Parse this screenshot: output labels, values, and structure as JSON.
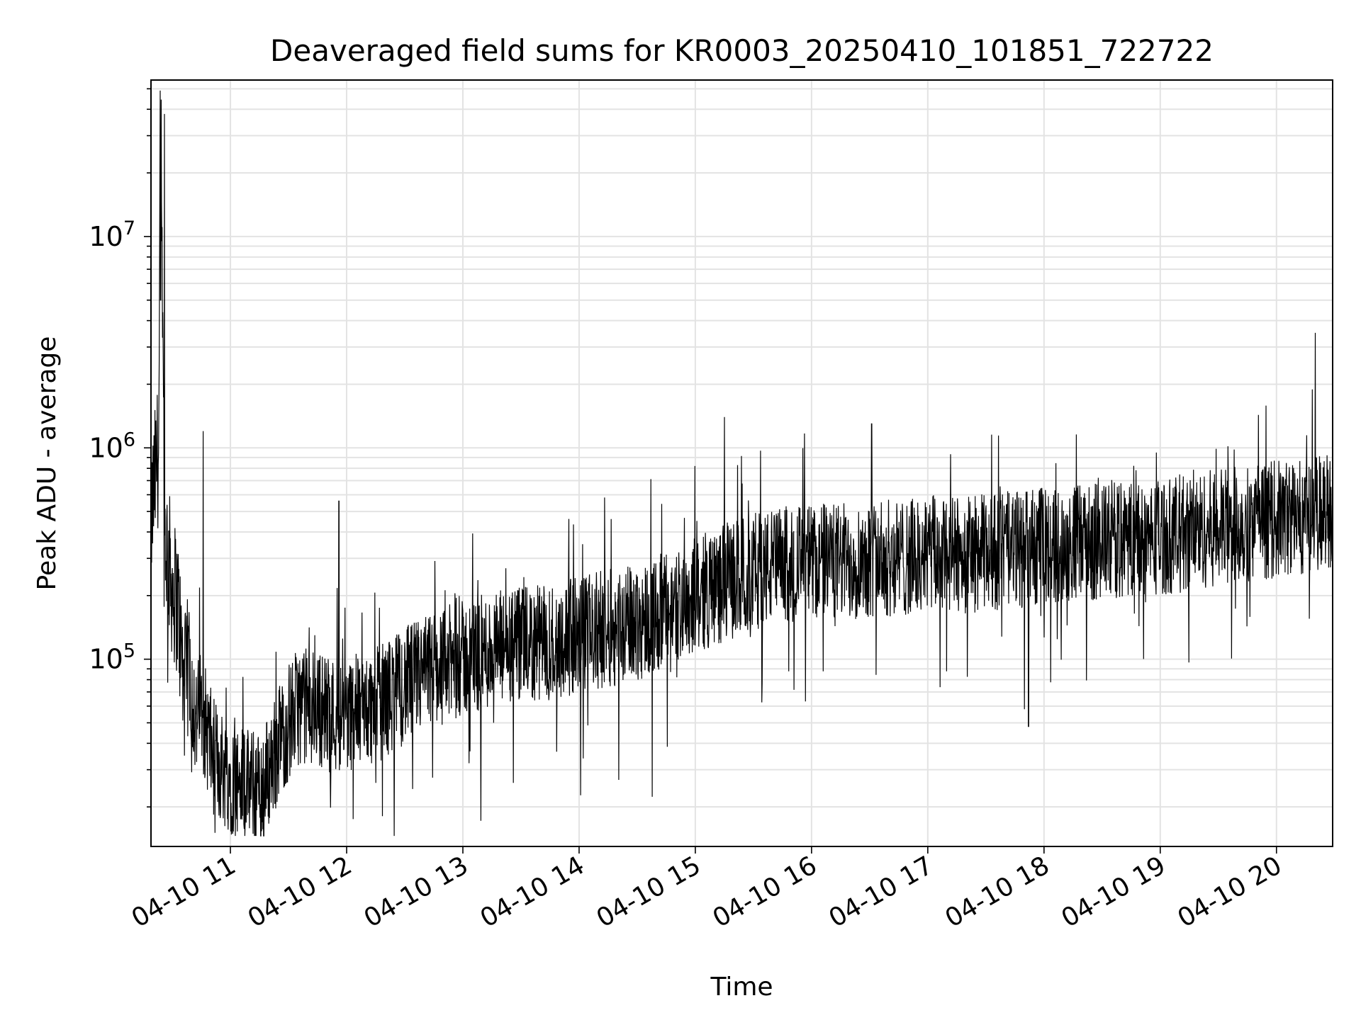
{
  "chart_data": {
    "type": "line",
    "title": "Deaveraged field sums for KR0003_20250410_101851_722722",
    "xlabel": "Time",
    "ylabel": "Peak ADU - average",
    "y_scale": "log",
    "ylim": [
      13000,
      55000000
    ],
    "xlim": [
      "04-10 10:19",
      "04-10 20:29"
    ],
    "grid": true,
    "line_color": "#000000",
    "x_ticks": [
      {
        "value": "04-10 11:00",
        "label": "04-10 11"
      },
      {
        "value": "04-10 12:00",
        "label": "04-10 12"
      },
      {
        "value": "04-10 13:00",
        "label": "04-10 13"
      },
      {
        "value": "04-10 14:00",
        "label": "04-10 14"
      },
      {
        "value": "04-10 15:00",
        "label": "04-10 15"
      },
      {
        "value": "04-10 16:00",
        "label": "04-10 16"
      },
      {
        "value": "04-10 17:00",
        "label": "04-10 17"
      },
      {
        "value": "04-10 18:00",
        "label": "04-10 18"
      },
      {
        "value": "04-10 19:00",
        "label": "04-10 19"
      },
      {
        "value": "04-10 20:00",
        "label": "04-10 20"
      }
    ],
    "y_ticks": [
      {
        "value": 100000,
        "base": "10",
        "exp": "5"
      },
      {
        "value": 1000000,
        "base": "10",
        "exp": "6"
      },
      {
        "value": 10000000,
        "base": "10",
        "exp": "7"
      }
    ],
    "series": [
      {
        "x": [
          "04-10 10:19",
          "04-10 10:21",
          "04-10 10:23",
          "04-10 10:24",
          "04-10 10:25",
          "04-10 10:26",
          "04-10 10:28",
          "04-10 10:30",
          "04-10 10:33",
          "04-10 10:36",
          "04-10 10:39",
          "04-10 10:42",
          "04-10 10:45",
          "04-10 10:48",
          "04-10 10:51",
          "04-10 10:54",
          "04-10 10:57",
          "04-10 11:00",
          "04-10 11:05",
          "04-10 11:10",
          "04-10 11:15",
          "04-10 11:20",
          "04-10 11:25",
          "04-10 11:30",
          "04-10 11:35",
          "04-10 11:40",
          "04-10 11:45",
          "04-10 11:50",
          "04-10 12:00",
          "04-10 12:15",
          "04-10 12:30",
          "04-10 12:45",
          "04-10 13:00",
          "04-10 13:15",
          "04-10 13:30",
          "04-10 13:45",
          "04-10 14:00",
          "04-10 14:15",
          "04-10 14:30",
          "04-10 14:45",
          "04-10 15:00",
          "04-10 15:15",
          "04-10 15:30",
          "04-10 15:45",
          "04-10 16:00",
          "04-10 16:15",
          "04-10 16:30",
          "04-10 16:45",
          "04-10 17:00",
          "04-10 17:15",
          "04-10 17:30",
          "04-10 17:45",
          "04-10 18:00",
          "04-10 18:15",
          "04-10 18:30",
          "04-10 18:45",
          "04-10 19:00",
          "04-10 19:15",
          "04-10 19:30",
          "04-10 19:45",
          "04-10 20:00",
          "04-10 20:15",
          "04-10 20:29"
        ],
        "y": [
          450000,
          700000,
          1000000,
          38000000,
          3000000,
          400000,
          300000,
          220000,
          180000,
          70000,
          100000,
          50000,
          60000,
          45000,
          35000,
          32000,
          30000,
          28000,
          26000,
          25000,
          24000,
          30000,
          40000,
          50000,
          60000,
          60000,
          60000,
          55000,
          55000,
          60000,
          75000,
          90000,
          100000,
          110000,
          115000,
          120000,
          130000,
          140000,
          150000,
          170000,
          200000,
          230000,
          260000,
          280000,
          290000,
          290000,
          300000,
          300000,
          310000,
          310000,
          320000,
          330000,
          340000,
          350000,
          360000,
          370000,
          380000,
          400000,
          420000,
          440000,
          460000,
          480000,
          520000
        ]
      }
    ],
    "spikes": [
      {
        "x": "04-10 10:26",
        "y": 38000000
      },
      {
        "x": "04-10 10:24",
        "y": 5000000
      },
      {
        "x": "04-10 10:46",
        "y": 1200000
      },
      {
        "x": "04-10 11:56",
        "y": 560000
      },
      {
        "x": "04-10 15:15",
        "y": 1400000
      },
      {
        "x": "04-10 16:31",
        "y": 1300000
      },
      {
        "x": "04-10 18:58",
        "y": 950000
      },
      {
        "x": "04-10 20:20",
        "y": 3500000
      },
      {
        "x": "04-10 13:26",
        "y": 26000
      },
      {
        "x": "04-10 11:18",
        "y": 18000
      },
      {
        "x": "04-10 17:52",
        "y": 48000
      }
    ]
  }
}
